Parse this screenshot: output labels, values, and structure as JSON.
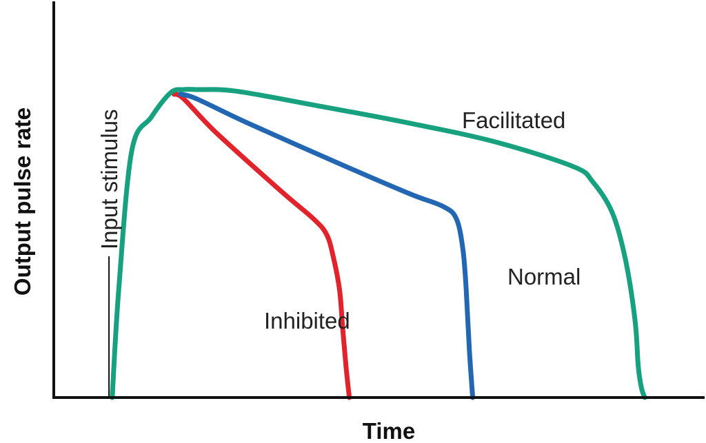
{
  "chart_data": {
    "type": "line",
    "title": "",
    "xlabel": "Time",
    "ylabel": "Output pulse rate",
    "xlim": [
      0,
      100
    ],
    "ylim": [
      0,
      100
    ],
    "grid": false,
    "annotations": [
      {
        "id": "stimulus",
        "text": "Input stimulus",
        "x": 8.5
      }
    ],
    "series": [
      {
        "name": "Facilitated",
        "color": "#17a17e",
        "x": [
          9,
          10,
          12,
          15,
          18,
          20,
          22,
          28,
          40,
          55,
          68,
          80,
          83,
          86,
          88,
          89.5,
          90,
          90.5,
          91
        ],
        "y": [
          0,
          35,
          80,
          91,
          99,
          100,
          100,
          99.5,
          95,
          89,
          83,
          75,
          70,
          60,
          45,
          25,
          10,
          3,
          0
        ]
      },
      {
        "name": "Normal",
        "color": "#2367b3",
        "x": [
          19.5,
          22,
          30,
          45,
          55,
          60,
          62,
          63,
          63.5,
          64,
          64.5
        ],
        "y": [
          98.5,
          97,
          89,
          75,
          66,
          62,
          58,
          48,
          35,
          15,
          0
        ]
      },
      {
        "name": "Inhibited",
        "color": "#e1232c",
        "x": [
          18.5,
          20,
          25,
          35,
          40,
          42,
          43,
          44,
          44.5,
          45,
          45.5
        ],
        "y": [
          98.5,
          97,
          86,
          67,
          58,
          53,
          46,
          35,
          22,
          10,
          0
        ]
      }
    ]
  }
}
